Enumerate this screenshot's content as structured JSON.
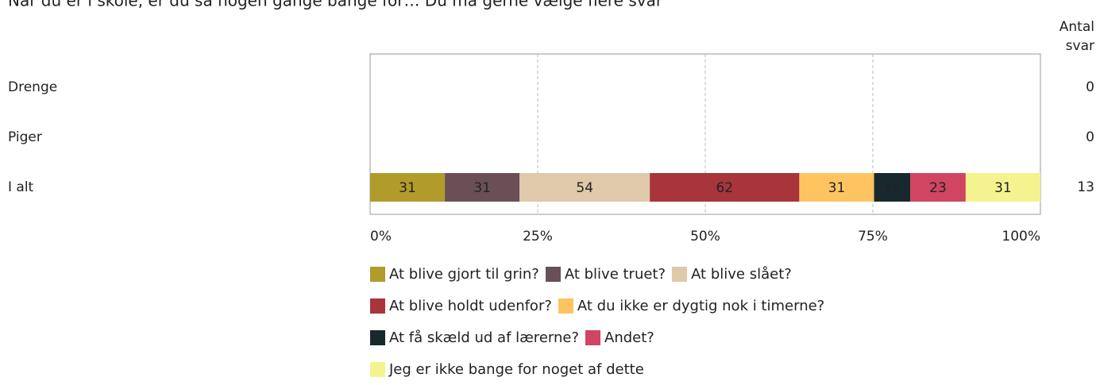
{
  "chart_data": {
    "type": "stacked_bar_100",
    "title": "Når du er i skole, er du så nogen gange bange for… Du må gerne vælge flere svar",
    "counts_label": "Antal svar",
    "categories": [
      "Drenge",
      "Piger",
      "I alt"
    ],
    "counts": [
      0,
      0,
      13
    ],
    "series": [
      {
        "name": "At blive gjort til grin?",
        "color": "#b09b2b",
        "values": [
          null,
          null,
          31
        ]
      },
      {
        "name": "At blive truet?",
        "color": "#6a4f57",
        "values": [
          null,
          null,
          31
        ]
      },
      {
        "name": "At blive slået?",
        "color": "#e0c8aa",
        "values": [
          null,
          null,
          54
        ]
      },
      {
        "name": "At blive holdt udenfor?",
        "color": "#a7353b",
        "values": [
          null,
          null,
          62
        ]
      },
      {
        "name": "At du ikke er dygtig nok i timerne?",
        "color": "#fec461",
        "values": [
          null,
          null,
          31
        ]
      },
      {
        "name": "At få skæld ud af lærerne?",
        "color": "#17292c",
        "values": [
          null,
          null,
          15
        ]
      },
      {
        "name": "Andet?",
        "color": "#cf4562",
        "values": [
          null,
          null,
          23
        ]
      },
      {
        "name": "Jeg er ikke bange for noget af dette",
        "color": "#f5f38f",
        "values": [
          null,
          null,
          31
        ]
      }
    ],
    "xlim": [
      0,
      100
    ],
    "xticks": [
      {
        "value": 0,
        "label": "0%"
      },
      {
        "value": 25,
        "label": "25%"
      },
      {
        "value": 50,
        "label": "50%"
      },
      {
        "value": 75,
        "label": "75%"
      },
      {
        "value": 100,
        "label": "100%"
      }
    ],
    "grid": true
  }
}
